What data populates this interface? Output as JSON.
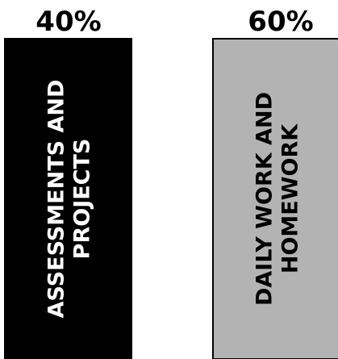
{
  "chart_data": {
    "type": "bar",
    "categories": [
      "ASSESSMENTS AND PROJECTS",
      "DAILY WORK AND HOMEWORK"
    ],
    "label_lines": [
      [
        "ASSESSMENTS AND",
        "PROJECTS"
      ],
      [
        "DAILY WORK AND",
        "HOMEWORK"
      ]
    ],
    "values": [
      40,
      60
    ],
    "value_labels": [
      "40%",
      "60%"
    ],
    "colors": [
      "#000000",
      "#b3b3b3"
    ],
    "label_colors": [
      "#ffffff",
      "#000000"
    ],
    "title": "",
    "xlabel": "",
    "ylabel": "",
    "grid": false,
    "legend": "none"
  }
}
